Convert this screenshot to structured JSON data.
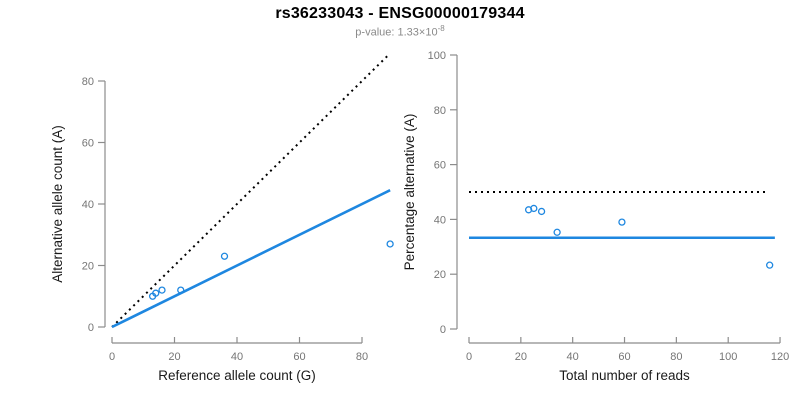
{
  "title": "rs36233043 - ENSG00000179344",
  "subtitle": {
    "prefix": "p-value: 1.33×10",
    "exponent": "-8"
  },
  "colors": {
    "accent_blue": "#1E87E0",
    "axis_line": "#8c8c8c",
    "tick_label": "#757575",
    "axis_label": "#1a1a1a",
    "dotted_line": "#000000",
    "subtitle_text": "#8a8a8a",
    "title_text": "#000000",
    "background": "#ffffff"
  },
  "chart_data": [
    {
      "name": "allele-count-scatter",
      "type": "scatter",
      "xlabel": "Reference allele count (G)",
      "ylabel": "Alternative allele count (A)",
      "xlim": [
        0,
        89
      ],
      "ylim": [
        0,
        90
      ],
      "xticks": [
        0,
        20,
        40,
        60,
        80
      ],
      "yticks": [
        0,
        20,
        40,
        60,
        80
      ],
      "points": [
        [
          13,
          10
        ],
        [
          14,
          11
        ],
        [
          16,
          12
        ],
        [
          22,
          12
        ],
        [
          36,
          23
        ],
        [
          89,
          27
        ]
      ],
      "lines": [
        {
          "name": "identity-line",
          "style": "dotted",
          "color": "#000000",
          "x1": 0,
          "y1": 0,
          "x2": 88.5,
          "y2": 88.5
        },
        {
          "name": "observed-ratio-line",
          "style": "solid",
          "color": "#1E87E0",
          "x1": 0,
          "y1": 0,
          "x2": 89,
          "y2": 44.5
        }
      ],
      "grid": false,
      "legend": null
    },
    {
      "name": "percentage-scatter",
      "type": "scatter",
      "xlabel": "Total number of reads",
      "ylabel": "Percentage alternative (A)",
      "xlim": [
        0,
        120
      ],
      "ylim": [
        0,
        100
      ],
      "xticks": [
        0,
        20,
        40,
        60,
        80,
        100,
        120
      ],
      "yticks": [
        0,
        20,
        40,
        60,
        80,
        100
      ],
      "points": [
        [
          23,
          43.5
        ],
        [
          25,
          44
        ],
        [
          28,
          42.9
        ],
        [
          34,
          35.3
        ],
        [
          59,
          39
        ],
        [
          116,
          23.3
        ]
      ],
      "lines": [
        {
          "name": "expected-50-percent-line",
          "style": "dotted",
          "color": "#000000",
          "x1": 0,
          "y1": 50,
          "x2": 115,
          "y2": 50
        },
        {
          "name": "observed-percent-line",
          "style": "solid",
          "color": "#1E87E0",
          "x1": 0,
          "y1": 33.3,
          "x2": 118,
          "y2": 33.3
        }
      ],
      "grid": false,
      "legend": null
    }
  ]
}
